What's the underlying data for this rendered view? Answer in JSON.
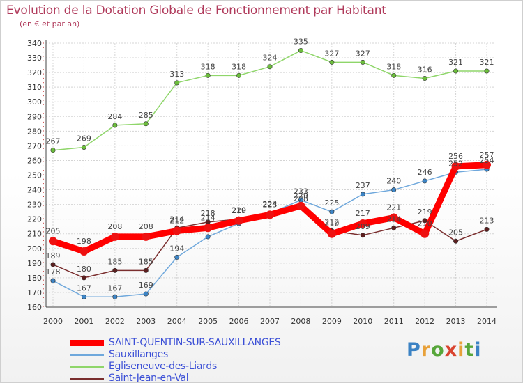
{
  "title": "Evolution de la Dotation Globale de Fonctionnement par Habitant",
  "subtitle": "(en € et par an)",
  "brand": {
    "text": "Proxiti",
    "colors": [
      "#3b82c4",
      "#e8a13a",
      "#57a63a",
      "#d9432f",
      "#e8a13a",
      "#57a63a",
      "#3b82c4"
    ]
  },
  "chart_data": {
    "type": "line",
    "x": [
      "2000",
      "2001",
      "2002",
      "2003",
      "2004",
      "2005",
      "2006",
      "2007",
      "2008",
      "2009",
      "2010",
      "2011",
      "2012",
      "2013",
      "2014"
    ],
    "ylim": [
      160,
      340
    ],
    "yticks": [
      "160",
      "170",
      "180",
      "190",
      "200",
      "210",
      "220",
      "230",
      "240",
      "250",
      "260",
      "270",
      "280",
      "290",
      "300",
      "310",
      "320",
      "330",
      "340"
    ],
    "grid": true,
    "legend_position": "bottom-left",
    "series": [
      {
        "name": "Egliseneuve-des-Liards",
        "color": "#8fd66a",
        "marker": "#6cbe3c",
        "values": [
          267,
          269,
          284,
          285,
          313,
          318,
          318,
          324,
          335,
          327,
          327,
          318,
          316,
          321,
          321
        ],
        "labels": [
          "267",
          "269",
          "284",
          "285",
          "313",
          "318",
          "318",
          "324",
          "335",
          "327",
          "327",
          "318",
          "316",
          "321",
          "321"
        ]
      },
      {
        "name": "Sauxillanges",
        "color": "#6fa8dc",
        "marker": "#3d85c6",
        "values": [
          178,
          167,
          167,
          169,
          194,
          208,
          217,
          224,
          233,
          225,
          237,
          240,
          246,
          252,
          254
        ],
        "labels": [
          "178",
          "167",
          "167",
          "169",
          "194",
          "",
          "",
          "224",
          "233",
          "225",
          "237",
          "240",
          "246",
          "252",
          "254"
        ]
      },
      {
        "name": "Saint-Jean-en-Val",
        "color": "#7a2e2e",
        "marker": "#5c1f1f",
        "values": [
          189,
          180,
          185,
          185,
          214,
          218,
          220,
          224,
          228,
          212,
          209,
          214,
          219,
          205,
          213
        ],
        "labels": [
          "189",
          "180",
          "185",
          "185",
          "214",
          "218",
          "220",
          "224",
          "228",
          "212",
          "209",
          "214",
          "219",
          "205",
          "213"
        ]
      },
      {
        "name": "SAINT-QUENTIN-SUR-SAUXILLANGES",
        "color": "#ff0000",
        "marker": "#ee1111",
        "values": [
          205,
          198,
          208,
          208,
          212,
          214,
          219,
          223,
          229,
          210,
          217,
          221,
          210,
          256,
          257
        ],
        "labels": [
          "205",
          "198",
          "208",
          "208",
          "212",
          "214",
          "219",
          "223",
          "229",
          "210",
          "217",
          "221",
          "210",
          "256",
          "257"
        ]
      }
    ]
  }
}
